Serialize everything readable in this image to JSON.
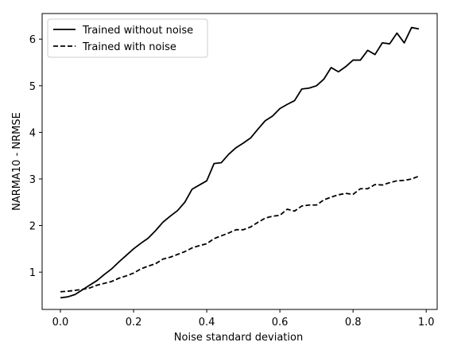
{
  "chart_data": {
    "type": "line",
    "xlabel": "Noise standard deviation",
    "ylabel": "NARMA10 - NRMSE",
    "xlim": [
      -0.05,
      1.03
    ],
    "ylim": [
      0.2,
      6.55
    ],
    "xticks": [
      0.0,
      0.2,
      0.4,
      0.6,
      0.8,
      1.0
    ],
    "xtick_labels": [
      "0.0",
      "0.2",
      "0.4",
      "0.6",
      "0.8",
      "1.0"
    ],
    "yticks": [
      1,
      2,
      3,
      4,
      5,
      6
    ],
    "ytick_labels": [
      "1",
      "2",
      "3",
      "4",
      "5",
      "6"
    ],
    "grid": false,
    "legend_position": "top-left",
    "x": [
      0.0,
      0.02,
      0.04,
      0.06,
      0.08,
      0.1,
      0.12,
      0.14,
      0.16,
      0.18,
      0.2,
      0.22,
      0.24,
      0.26,
      0.28,
      0.3,
      0.32,
      0.34,
      0.36,
      0.38,
      0.4,
      0.42,
      0.44,
      0.46,
      0.48,
      0.5,
      0.52,
      0.54,
      0.56,
      0.58,
      0.6,
      0.62,
      0.64,
      0.66,
      0.68,
      0.7,
      0.72,
      0.74,
      0.76,
      0.78,
      0.8,
      0.82,
      0.84,
      0.86,
      0.88,
      0.9,
      0.92,
      0.94,
      0.96,
      0.98
    ],
    "series": [
      {
        "name": "Trained without noise",
        "style": "solid",
        "color": "#000000",
        "values": [
          0.45,
          0.47,
          0.52,
          0.62,
          0.72,
          0.82,
          0.95,
          1.07,
          1.22,
          1.36,
          1.5,
          1.62,
          1.73,
          1.89,
          2.07,
          2.2,
          2.32,
          2.5,
          2.78,
          2.87,
          2.96,
          3.33,
          3.35,
          3.53,
          3.67,
          3.77,
          3.88,
          4.07,
          4.25,
          4.35,
          4.51,
          4.6,
          4.68,
          4.93,
          4.95,
          5.0,
          5.14,
          5.39,
          5.3,
          5.41,
          5.55,
          5.55,
          5.76,
          5.67,
          5.92,
          5.9,
          6.13,
          5.92,
          6.25,
          6.22
        ]
      },
      {
        "name": "Trained with noise",
        "style": "dashed",
        "color": "#000000",
        "values": [
          0.58,
          0.59,
          0.61,
          0.63,
          0.66,
          0.72,
          0.76,
          0.8,
          0.87,
          0.92,
          0.98,
          1.07,
          1.13,
          1.18,
          1.28,
          1.32,
          1.38,
          1.44,
          1.52,
          1.57,
          1.61,
          1.72,
          1.78,
          1.84,
          1.91,
          1.91,
          1.97,
          2.07,
          2.16,
          2.2,
          2.22,
          2.35,
          2.31,
          2.42,
          2.44,
          2.44,
          2.55,
          2.61,
          2.66,
          2.69,
          2.67,
          2.79,
          2.79,
          2.88,
          2.87,
          2.92,
          2.96,
          2.97,
          3.0,
          3.06
        ]
      }
    ]
  }
}
